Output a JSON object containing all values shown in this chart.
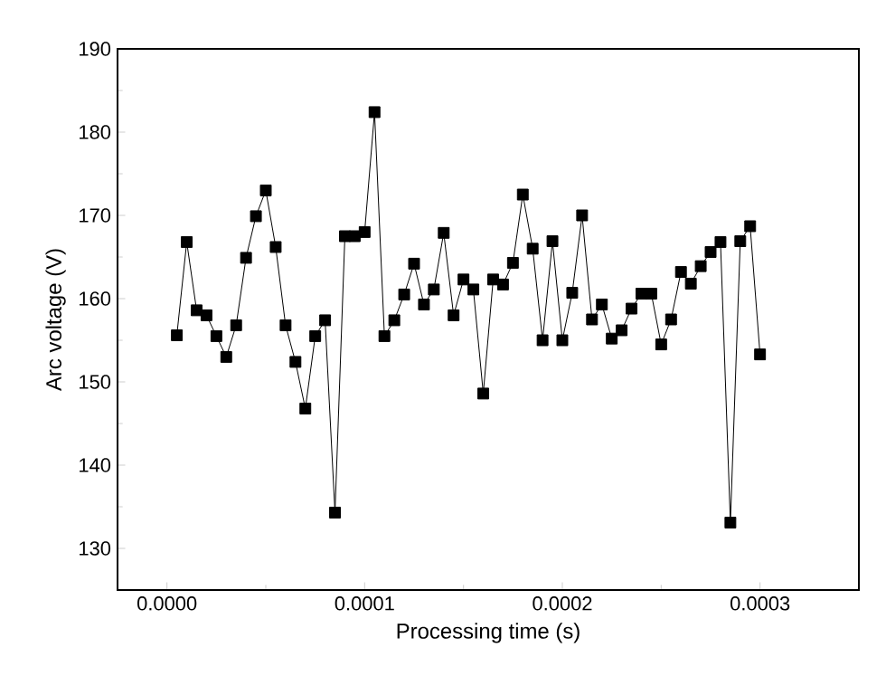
{
  "chart_data": {
    "type": "line",
    "xlabel": "Processing time (s)",
    "ylabel": "Arc voltage (V)",
    "x": [
      5e-06,
      1e-05,
      1.5e-05,
      2e-05,
      2.5e-05,
      3e-05,
      3.5e-05,
      4e-05,
      4.5e-05,
      5e-05,
      5.5e-05,
      6e-05,
      6.5e-05,
      7e-05,
      7.5e-05,
      8e-05,
      8.5e-05,
      9e-05,
      9.5e-05,
      0.0001,
      0.000105,
      0.00011,
      0.000115,
      0.00012,
      0.000125,
      0.00013,
      0.000135,
      0.00014,
      0.000145,
      0.00015,
      0.000155,
      0.00016,
      0.000165,
      0.00017,
      0.000175,
      0.00018,
      0.000185,
      0.00019,
      0.000195,
      0.0002,
      0.000205,
      0.00021,
      0.000215,
      0.00022,
      0.000225,
      0.00023,
      0.000235,
      0.00024,
      0.000245,
      0.00025,
      0.000255,
      0.00026,
      0.000265,
      0.00027,
      0.000275,
      0.00028,
      0.000285,
      0.00029,
      0.000295,
      0.0003
    ],
    "values": [
      155.6,
      166.8,
      158.6,
      158.0,
      155.5,
      153.0,
      156.8,
      164.9,
      169.9,
      173.0,
      166.2,
      156.8,
      152.4,
      146.8,
      155.5,
      157.4,
      134.3,
      167.5,
      167.5,
      168.0,
      182.4,
      155.5,
      157.4,
      160.5,
      164.2,
      159.3,
      161.1,
      167.9,
      158.0,
      162.3,
      161.1,
      148.6,
      162.3,
      161.7,
      164.3,
      172.5,
      166.0,
      155.0,
      166.9,
      155.0,
      160.7,
      170.0,
      157.5,
      159.3,
      155.2,
      156.2,
      158.8,
      160.6,
      160.6,
      154.5,
      157.5,
      163.2,
      161.8,
      163.9,
      165.6,
      166.8,
      133.1,
      166.9,
      168.7,
      153.3
    ],
    "color": "#000000",
    "marker": "square",
    "line_style": "solid",
    "xlim": [
      -2.5e-05,
      0.00035
    ],
    "ylim": [
      125,
      190
    ],
    "xticks": [
      {
        "value": 0,
        "label": "0.0000"
      },
      {
        "value": 0.0001,
        "label": "0.0001"
      },
      {
        "value": 0.0002,
        "label": "0.0002"
      },
      {
        "value": 0.0003,
        "label": "0.0003"
      }
    ],
    "yticks": [
      130,
      140,
      150,
      160,
      170,
      180,
      190
    ]
  }
}
